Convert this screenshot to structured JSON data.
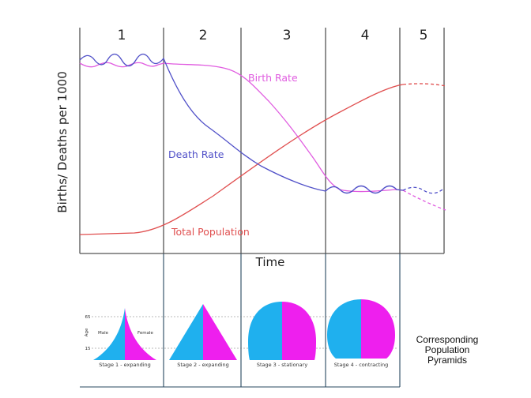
{
  "stages": [
    "1",
    "2",
    "3",
    "4",
    "5"
  ],
  "labels": {
    "birth_rate": "Birth Rate",
    "death_rate": "Death Rate",
    "total_population": "Total Population",
    "y_axis": "Births/ Deaths per 1000",
    "x_axis": "Time"
  },
  "pyramids": {
    "age_axis": "Age",
    "age_65": "65",
    "age_15": "15",
    "male": "Male",
    "female": "Female",
    "captions": [
      "Stage 1 - expanding",
      "Stage 2 - expanding",
      "Stage 3 - stationary",
      "Stage 4 - contracting"
    ]
  },
  "corresponding_label": [
    "Corresponding",
    "Population",
    "Pyramids"
  ],
  "colors": {
    "birth_rate": "#e05ce0",
    "death_rate": "#5050c8",
    "total_population": "#e05050",
    "male": "#1fb0ee",
    "female": "#ee1fee"
  }
}
